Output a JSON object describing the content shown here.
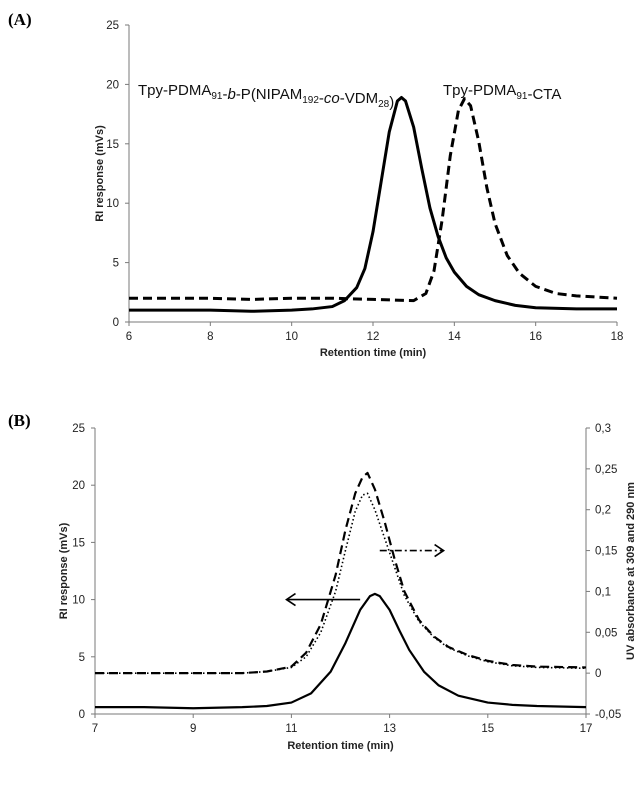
{
  "panels": {
    "a": {
      "label": "(A)"
    },
    "b": {
      "label": "(B)"
    }
  },
  "chart_data": [
    {
      "type": "line",
      "xlabel": "Retention time (min)",
      "ylabel": "RI response (mVs)",
      "xlim": [
        6,
        18
      ],
      "ylim": [
        0,
        25
      ],
      "xticks": [
        6,
        8,
        10,
        12,
        14,
        16,
        18
      ],
      "yticks": [
        0,
        5,
        10,
        15,
        20,
        25
      ],
      "grid": false,
      "annotations": [
        {
          "text": "Tpy-PDMA",
          "sub1": "91",
          "mid1": "-",
          "ital1": "b",
          "mid2": "-P(NIPAM",
          "sub2": "192",
          "mid3": "-",
          "ital2": "co",
          "mid4": "-VDM",
          "sub3": "28",
          "end": ")"
        },
        {
          "text": "Tpy-PDMA",
          "sub1": "91",
          "end": "-CTA"
        }
      ],
      "series": [
        {
          "style": "solid",
          "x": [
            6.0,
            7.0,
            8.0,
            9.0,
            10.0,
            10.5,
            11.0,
            11.3,
            11.6,
            11.8,
            12.0,
            12.2,
            12.4,
            12.6,
            12.7,
            12.8,
            13.0,
            13.2,
            13.4,
            13.6,
            13.8,
            14.0,
            14.3,
            14.6,
            15.0,
            15.5,
            16.0,
            17.0,
            18.0
          ],
          "y": [
            1.0,
            1.0,
            1.0,
            0.9,
            1.0,
            1.1,
            1.3,
            1.8,
            2.9,
            4.5,
            7.6,
            11.8,
            16.0,
            18.6,
            18.9,
            18.6,
            16.4,
            12.9,
            9.6,
            7.2,
            5.4,
            4.2,
            3.0,
            2.3,
            1.8,
            1.4,
            1.2,
            1.1,
            1.1
          ]
        },
        {
          "style": "dashed",
          "x": [
            6.0,
            7.0,
            8.0,
            9.0,
            10.0,
            11.0,
            12.0,
            13.0,
            13.3,
            13.5,
            13.7,
            13.9,
            14.1,
            14.25,
            14.4,
            14.6,
            14.8,
            15.0,
            15.3,
            15.6,
            16.0,
            16.5,
            17.0,
            18.0
          ],
          "y": [
            2.0,
            2.0,
            2.0,
            1.9,
            2.0,
            2.0,
            1.9,
            1.8,
            2.4,
            4.3,
            8.6,
            14.0,
            17.8,
            18.8,
            18.2,
            15.2,
            11.3,
            8.3,
            5.6,
            4.1,
            3.0,
            2.4,
            2.2,
            2.0
          ]
        }
      ]
    },
    {
      "type": "line",
      "xlabel": "Retention time (min)",
      "ylabel": "RI response (mVs)",
      "y2label": "UV absorbance at 309 and 290 nm",
      "xlim": [
        7,
        17
      ],
      "ylim": [
        0,
        25
      ],
      "y2lim": [
        -0.05,
        0.3
      ],
      "xticks": [
        7,
        9,
        11,
        13,
        15,
        17
      ],
      "yticks": [
        0,
        5,
        10,
        15,
        20,
        25
      ],
      "y2ticks": [
        "-0,05",
        "0",
        "0,05",
        "0,1",
        "0,15",
        "0,2",
        "0,25",
        "0,3"
      ],
      "grid": false,
      "series": [
        {
          "style": "solid",
          "axis": "left",
          "x": [
            7.0,
            8.0,
            9.0,
            10.0,
            10.5,
            11.0,
            11.4,
            11.8,
            12.1,
            12.4,
            12.6,
            12.7,
            12.8,
            13.0,
            13.2,
            13.4,
            13.7,
            14.0,
            14.4,
            15.0,
            15.5,
            16.0,
            17.0
          ],
          "y": [
            0.6,
            0.6,
            0.5,
            0.6,
            0.7,
            1.0,
            1.8,
            3.7,
            6.2,
            9.1,
            10.3,
            10.5,
            10.3,
            9.1,
            7.3,
            5.6,
            3.7,
            2.5,
            1.6,
            1.0,
            0.8,
            0.7,
            0.6
          ]
        },
        {
          "style": "dashed",
          "axis": "right",
          "x": [
            7.0,
            8.0,
            9.0,
            10.0,
            10.5,
            11.0,
            11.3,
            11.6,
            11.9,
            12.1,
            12.3,
            12.45,
            12.55,
            12.7,
            12.9,
            13.1,
            13.3,
            13.6,
            13.9,
            14.2,
            14.6,
            15.0,
            15.5,
            16.0,
            17.0
          ],
          "y": [
            0.0,
            0.0,
            0.0,
            0.0,
            0.002,
            0.008,
            0.025,
            0.06,
            0.12,
            0.175,
            0.22,
            0.24,
            0.245,
            0.225,
            0.185,
            0.14,
            0.1,
            0.065,
            0.045,
            0.032,
            0.022,
            0.015,
            0.01,
            0.008,
            0.007
          ]
        },
        {
          "style": "dotted",
          "axis": "right",
          "x": [
            7.0,
            8.0,
            9.0,
            10.0,
            10.5,
            11.0,
            11.3,
            11.6,
            11.9,
            12.1,
            12.3,
            12.45,
            12.55,
            12.7,
            12.9,
            13.1,
            13.3,
            13.6,
            13.9,
            14.2,
            14.6,
            15.0,
            15.5,
            16.0,
            17.0
          ],
          "y": [
            0.0,
            0.0,
            0.0,
            0.0,
            0.002,
            0.007,
            0.02,
            0.05,
            0.1,
            0.15,
            0.198,
            0.218,
            0.22,
            0.2,
            0.165,
            0.13,
            0.095,
            0.063,
            0.044,
            0.031,
            0.021,
            0.014,
            0.009,
            0.007,
            0.006
          ]
        }
      ],
      "arrows": [
        {
          "direction": "left",
          "style": "solid",
          "x_from": 12.4,
          "x_to": 10.9,
          "y": 10.0,
          "axis": "left"
        },
        {
          "direction": "right",
          "style": "dash-dot",
          "x_from": 12.8,
          "x_to": 14.1,
          "y": 0.15,
          "axis": "right"
        }
      ]
    }
  ]
}
